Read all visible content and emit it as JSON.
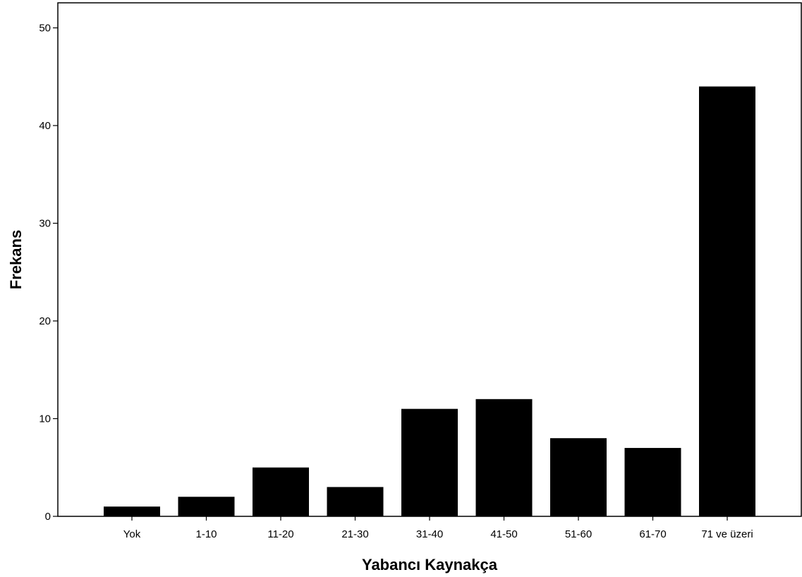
{
  "chart_data": {
    "type": "bar",
    "title": "",
    "xlabel": "Yabancı Kaynakça",
    "ylabel": "Frekans",
    "categories": [
      "Yok",
      "1-10",
      "11-20",
      "21-30",
      "31-40",
      "41-50",
      "51-60",
      "61-70",
      "71 ve üzeri"
    ],
    "values": [
      1,
      2,
      5,
      3,
      11,
      12,
      8,
      7,
      44
    ],
    "ylim": [
      0,
      52.5
    ],
    "yticks": [
      0,
      10,
      20,
      30,
      40,
      50
    ],
    "grid": false,
    "bar_color": "#000000"
  }
}
